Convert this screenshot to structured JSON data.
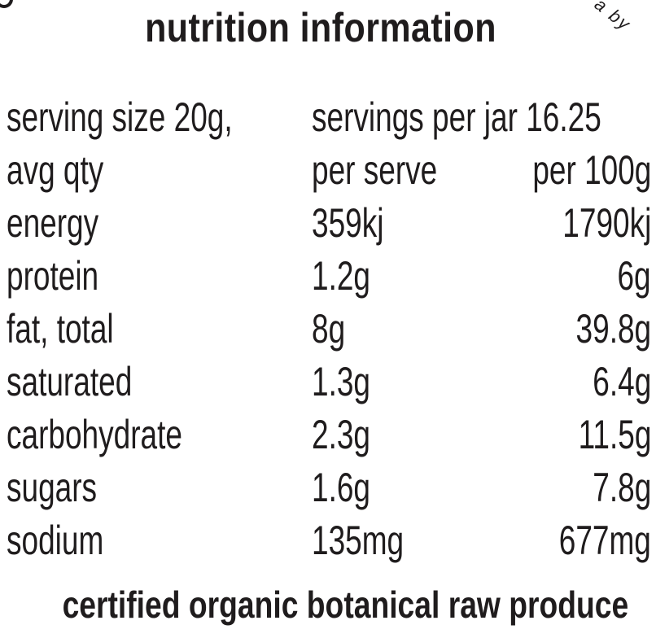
{
  "decor": {
    "corner_right_text": "a by"
  },
  "title": "nutrition information",
  "serving": {
    "size": "serving size 20g,",
    "per_jar": "servings per jar 16.25"
  },
  "header": {
    "label": "avg qty",
    "per_serve": "per serve",
    "per_100g": "per 100g"
  },
  "rows": [
    {
      "name": "energy",
      "per_serve": "359kj",
      "per_100g": "1790kj"
    },
    {
      "name": "protein",
      "per_serve": "1.2g",
      "per_100g": "6g"
    },
    {
      "name": "fat, total",
      "per_serve": "8g",
      "per_100g": "39.8g"
    },
    {
      "name": "saturated",
      "per_serve": "1.3g",
      "per_100g": "6.4g"
    },
    {
      "name": "carbohydrate",
      "per_serve": "2.3g",
      "per_100g": "11.5g"
    },
    {
      "name": "sugars",
      "per_serve": "1.6g",
      "per_100g": "7.8g"
    },
    {
      "name": "sodium",
      "per_serve": "135mg",
      "per_100g": "677mg"
    }
  ],
  "footer": "certified organic botanical raw produce"
}
